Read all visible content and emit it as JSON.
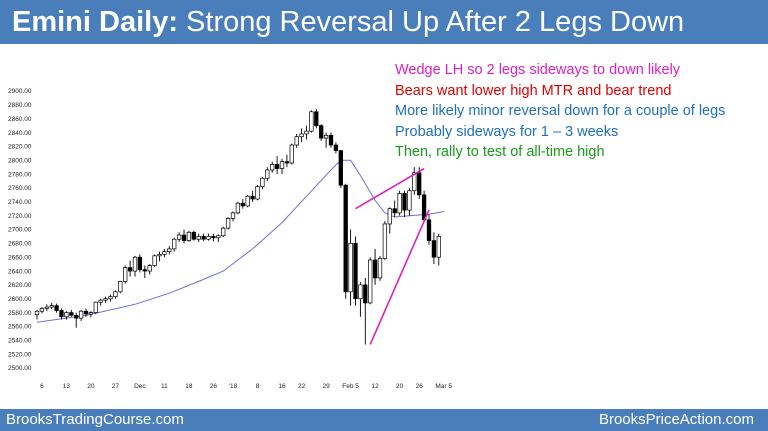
{
  "header": {
    "title_bold": "Emini Daily:",
    "title_rest": " Strong Reversal Up After 2 Legs Down"
  },
  "notes": [
    {
      "text": "Wedge LH so 2 legs sideways to down likely",
      "color": "#e020c0"
    },
    {
      "text": "Bears want lower high MTR and bear trend",
      "color": "#e00000"
    },
    {
      "text": "More likely minor reversal down for a couple of legs",
      "color": "#1f6fc0"
    },
    {
      "text": "Probably sideways for 1 – 3 weeks",
      "color": "#1f6fc0"
    },
    {
      "text": "Then, rally to test of all-time high",
      "color": "#1a9a1a"
    }
  ],
  "footer": {
    "left": "BrooksTradingCourse.com",
    "right": "BrooksPriceAction.com"
  },
  "colors": {
    "accent": "#4a7ebb",
    "moving_average": "#6f6fd8",
    "wedge_lines": "#e020c0",
    "bull_candle": "#ffffff",
    "bear_candle": "#000000"
  },
  "chart_data": {
    "type": "candlestick",
    "title": "Emini Daily",
    "ylim": [
      2500,
      2900
    ],
    "y_ticks": [
      "2500.00",
      "2520.00",
      "2540.00",
      "2560.00",
      "2580.00",
      "2600.00",
      "2620.00",
      "2640.00",
      "2660.00",
      "2680.00",
      "2700.00",
      "2720.00",
      "2740.00",
      "2760.00",
      "2780.00",
      "2800.00",
      "2820.00",
      "2840.00",
      "2860.00",
      "2880.00",
      "2900.00"
    ],
    "x_ticks": [
      {
        "label": "6",
        "bar": 1
      },
      {
        "label": "13",
        "bar": 6
      },
      {
        "label": "20",
        "bar": 11
      },
      {
        "label": "27",
        "bar": 16
      },
      {
        "label": "Dec",
        "bar": 21
      },
      {
        "label": "11",
        "bar": 26
      },
      {
        "label": "18",
        "bar": 31
      },
      {
        "label": "26",
        "bar": 36
      },
      {
        "label": "'18",
        "bar": 40
      },
      {
        "label": "8",
        "bar": 45
      },
      {
        "label": "16",
        "bar": 50
      },
      {
        "label": "22",
        "bar": 54
      },
      {
        "label": "29",
        "bar": 59
      },
      {
        "label": "Feb 5",
        "bar": 64
      },
      {
        "label": "12",
        "bar": 69
      },
      {
        "label": "20",
        "bar": 74
      },
      {
        "label": "26",
        "bar": 78
      },
      {
        "label": "Mar 5",
        "bar": 83
      }
    ],
    "ohlc": [
      [
        2577,
        2584,
        2570,
        2582
      ],
      [
        2582,
        2588,
        2579,
        2586
      ],
      [
        2586,
        2592,
        2582,
        2588
      ],
      [
        2588,
        2594,
        2585,
        2590
      ],
      [
        2590,
        2593,
        2580,
        2583
      ],
      [
        2583,
        2586,
        2570,
        2574
      ],
      [
        2574,
        2582,
        2570,
        2580
      ],
      [
        2580,
        2584,
        2574,
        2576
      ],
      [
        2576,
        2580,
        2558,
        2572
      ],
      [
        2572,
        2584,
        2568,
        2582
      ],
      [
        2582,
        2586,
        2574,
        2578
      ],
      [
        2578,
        2582,
        2573,
        2580
      ],
      [
        2580,
        2596,
        2578,
        2595
      ],
      [
        2595,
        2600,
        2590,
        2598
      ],
      [
        2598,
        2603,
        2594,
        2600
      ],
      [
        2600,
        2606,
        2596,
        2603
      ],
      [
        2603,
        2612,
        2600,
        2610
      ],
      [
        2610,
        2626,
        2608,
        2625
      ],
      [
        2625,
        2648,
        2622,
        2645
      ],
      [
        2645,
        2655,
        2632,
        2640
      ],
      [
        2640,
        2662,
        2632,
        2660
      ],
      [
        2660,
        2664,
        2638,
        2642
      ],
      [
        2642,
        2648,
        2630,
        2640
      ],
      [
        2640,
        2650,
        2635,
        2648
      ],
      [
        2648,
        2664,
        2646,
        2662
      ],
      [
        2662,
        2668,
        2654,
        2664
      ],
      [
        2664,
        2672,
        2660,
        2668
      ],
      [
        2668,
        2676,
        2664,
        2672
      ],
      [
        2672,
        2688,
        2668,
        2686
      ],
      [
        2686,
        2696,
        2682,
        2692
      ],
      [
        2692,
        2700,
        2680,
        2684
      ],
      [
        2684,
        2698,
        2682,
        2696
      ],
      [
        2696,
        2698,
        2684,
        2686
      ],
      [
        2686,
        2694,
        2682,
        2690
      ],
      [
        2690,
        2694,
        2683,
        2686
      ],
      [
        2686,
        2694,
        2684,
        2690
      ],
      [
        2690,
        2694,
        2683,
        2688
      ],
      [
        2688,
        2693,
        2682,
        2691
      ],
      [
        2691,
        2704,
        2689,
        2702
      ],
      [
        2702,
        2718,
        2700,
        2716
      ],
      [
        2716,
        2726,
        2712,
        2724
      ],
      [
        2724,
        2740,
        2722,
        2738
      ],
      [
        2738,
        2744,
        2730,
        2734
      ],
      [
        2734,
        2750,
        2732,
        2748
      ],
      [
        2748,
        2756,
        2740,
        2744
      ],
      [
        2744,
        2764,
        2742,
        2762
      ],
      [
        2762,
        2776,
        2758,
        2774
      ],
      [
        2774,
        2790,
        2770,
        2786
      ],
      [
        2786,
        2798,
        2782,
        2794
      ],
      [
        2794,
        2806,
        2780,
        2788
      ],
      [
        2788,
        2802,
        2780,
        2798
      ],
      [
        2798,
        2808,
        2790,
        2796
      ],
      [
        2796,
        2824,
        2794,
        2822
      ],
      [
        2822,
        2838,
        2818,
        2834
      ],
      [
        2834,
        2846,
        2826,
        2838
      ],
      [
        2838,
        2850,
        2830,
        2842
      ],
      [
        2842,
        2872,
        2840,
        2870
      ],
      [
        2870,
        2874,
        2846,
        2850
      ],
      [
        2850,
        2852,
        2828,
        2832
      ],
      [
        2832,
        2840,
        2818,
        2836
      ],
      [
        2836,
        2840,
        2818,
        2822
      ],
      [
        2822,
        2826,
        2810,
        2814
      ],
      [
        2814,
        2814,
        2760,
        2764
      ],
      [
        2764,
        2766,
        2600,
        2610
      ],
      [
        2610,
        2700,
        2590,
        2680
      ],
      [
        2680,
        2690,
        2590,
        2600
      ],
      [
        2600,
        2624,
        2574,
        2620
      ],
      [
        2620,
        2630,
        2534,
        2594
      ],
      [
        2594,
        2660,
        2592,
        2656
      ],
      [
        2656,
        2672,
        2620,
        2630
      ],
      [
        2630,
        2662,
        2626,
        2658
      ],
      [
        2658,
        2712,
        2656,
        2708
      ],
      [
        2708,
        2732,
        2694,
        2730
      ],
      [
        2730,
        2742,
        2718,
        2724
      ],
      [
        2724,
        2756,
        2720,
        2752
      ],
      [
        2752,
        2756,
        2718,
        2728
      ],
      [
        2728,
        2760,
        2720,
        2756
      ],
      [
        2756,
        2790,
        2750,
        2782
      ],
      [
        2782,
        2790,
        2744,
        2750
      ],
      [
        2750,
        2756,
        2710,
        2714
      ],
      [
        2714,
        2722,
        2678,
        2684
      ],
      [
        2684,
        2696,
        2650,
        2660
      ],
      [
        2660,
        2694,
        2648,
        2690
      ]
    ],
    "moving_average": [
      [
        0,
        2566
      ],
      [
        10,
        2576
      ],
      [
        20,
        2592
      ],
      [
        27,
        2608
      ],
      [
        34,
        2628
      ],
      [
        38,
        2640
      ],
      [
        44,
        2672
      ],
      [
        50,
        2710
      ],
      [
        55,
        2748
      ],
      [
        60,
        2786
      ],
      [
        62,
        2800
      ],
      [
        64,
        2800
      ],
      [
        66,
        2778
      ],
      [
        69,
        2742
      ],
      [
        71,
        2724
      ],
      [
        73,
        2718
      ],
      [
        76,
        2720
      ],
      [
        80,
        2722
      ],
      [
        83,
        2726
      ]
    ],
    "wedge_lines": [
      [
        [
          65,
          2730
        ],
        [
          79,
          2788
        ]
      ],
      [
        [
          68,
          2534
        ],
        [
          80,
          2728
        ]
      ]
    ]
  }
}
